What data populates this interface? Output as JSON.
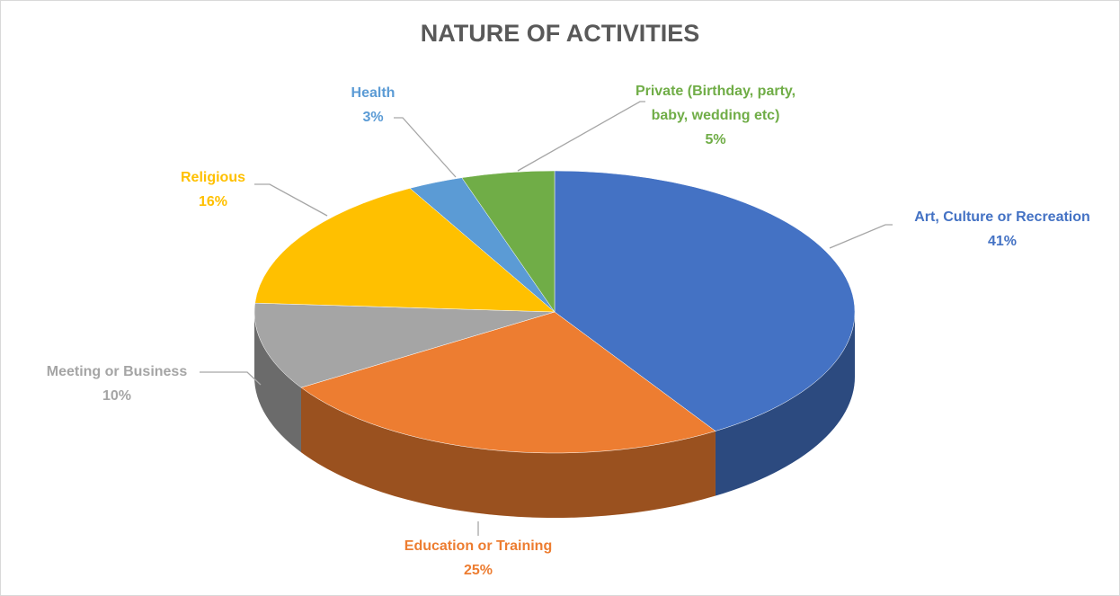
{
  "chart_data": {
    "type": "pie3d",
    "title": "NATURE OF ACTIVITIES",
    "categories": [
      "Art, Culture or Recreation",
      "Education or Training",
      "Meeting or Business",
      "Religious",
      "Health",
      "Private (Birthday, party, baby, wedding etc)"
    ],
    "values": [
      41,
      25,
      10,
      16,
      3,
      5
    ],
    "value_labels": [
      "41%",
      "25%",
      "10%",
      "16%",
      "3%",
      "5%"
    ],
    "colors": [
      "#4472c4",
      "#ed7d31",
      "#a5a5a5",
      "#ffc000",
      "#5b9bd5",
      "#70ad47"
    ]
  }
}
